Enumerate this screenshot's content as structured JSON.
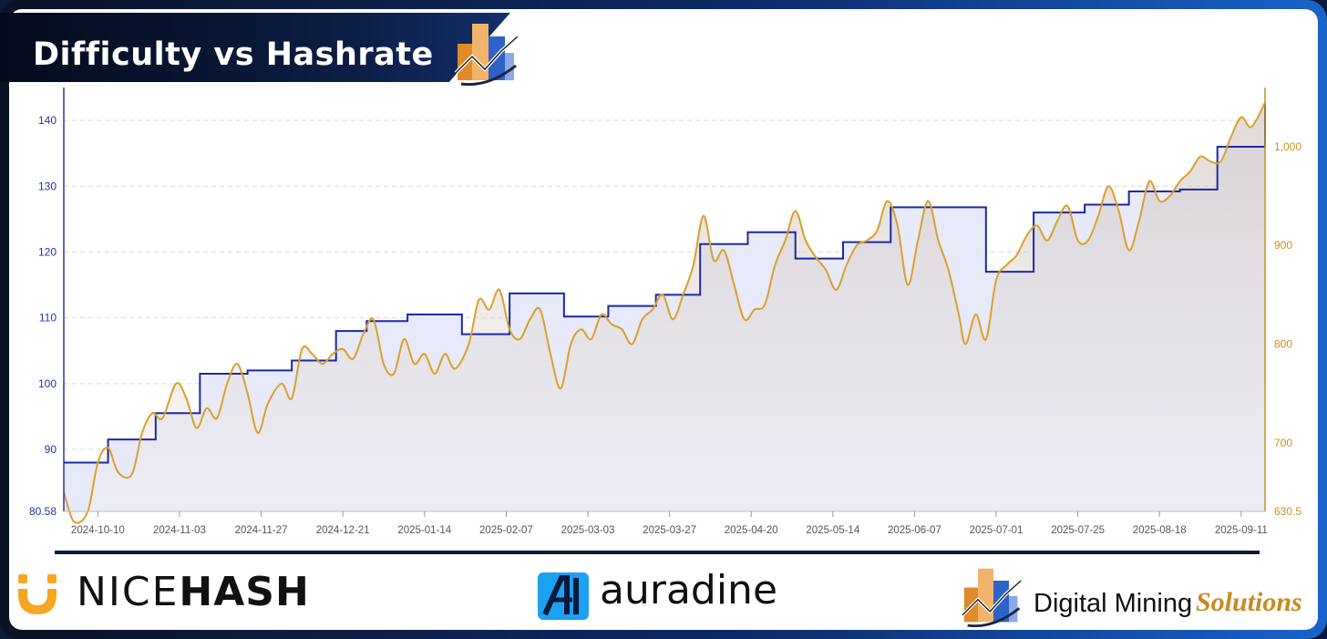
{
  "title": "Difficulty vs Hashrate",
  "colors": {
    "difficulty": "#1a2aa6",
    "hashrate": "#d9a02a",
    "left_axis": "#2233aa",
    "right_axis": "#c9921f",
    "grid": "#d9d9d9"
  },
  "footer": {
    "nicehash": {
      "prefix": "NICE",
      "suffix": "HASH",
      "icon": "nicehash-logo-icon"
    },
    "auradine": {
      "text": "auradine",
      "icon": "auradine-logo-icon"
    },
    "dms": {
      "text": "Digital Mining",
      "accent": "Solutions",
      "icon": "dms-logo-icon"
    }
  },
  "chart_data": {
    "type": "line",
    "title": "Difficulty vs Hashrate",
    "x_ticks": [
      "2024-10-10",
      "2024-11-03",
      "2024-11-27",
      "2024-12-21",
      "2025-01-14",
      "2025-02-07",
      "2025-03-03",
      "2025-03-27",
      "2025-04-20",
      "2025-05-14",
      "2025-06-07",
      "2025-07-01",
      "2025-07-25",
      "2025-08-18",
      "2025-09-11"
    ],
    "x_range": [
      "2024-09-30",
      "2025-09-18"
    ],
    "y_left": {
      "min": 80.58,
      "max": 145,
      "ticks": [
        80.58,
        90,
        100,
        110,
        120,
        130,
        140
      ]
    },
    "y_right": {
      "min": 630.5,
      "max": 1060,
      "ticks": [
        630.5,
        700,
        800,
        900,
        1000
      ],
      "tick_labels": [
        "630.5",
        "700",
        "800",
        "900",
        "1,000"
      ]
    },
    "series": [
      {
        "axis": "left",
        "step": true,
        "points": [
          [
            "2024-09-30",
            88
          ],
          [
            "2024-10-13",
            91.5
          ],
          [
            "2024-10-27",
            95.5
          ],
          [
            "2024-11-09",
            101.5
          ],
          [
            "2024-11-23",
            102
          ],
          [
            "2024-12-06",
            103.5
          ],
          [
            "2024-12-19",
            108
          ],
          [
            "2024-12-28",
            109.5
          ],
          [
            "2025-01-09",
            110.5
          ],
          [
            "2025-01-25",
            107.5
          ],
          [
            "2025-02-08",
            113.7
          ],
          [
            "2025-02-24",
            110.2
          ],
          [
            "2025-03-09",
            111.8
          ],
          [
            "2025-03-23",
            113.5
          ],
          [
            "2025-04-05",
            121.2
          ],
          [
            "2025-04-19",
            123
          ],
          [
            "2025-05-03",
            119
          ],
          [
            "2025-05-17",
            121.5
          ],
          [
            "2025-05-31",
            126.8
          ],
          [
            "2025-06-28",
            117
          ],
          [
            "2025-07-12",
            126
          ],
          [
            "2025-07-27",
            127.2
          ],
          [
            "2025-08-09",
            129.2
          ],
          [
            "2025-08-24",
            129.5
          ],
          [
            "2025-09-04",
            136
          ],
          [
            "2025-09-18",
            142.5
          ]
        ]
      },
      {
        "axis": "right",
        "step": false,
        "points": [
          [
            "2024-09-30",
            650
          ],
          [
            "2024-10-03",
            620
          ],
          [
            "2024-10-07",
            630
          ],
          [
            "2024-10-10",
            680
          ],
          [
            "2024-10-13",
            695
          ],
          [
            "2024-10-16",
            670
          ],
          [
            "2024-10-20",
            668
          ],
          [
            "2024-10-23",
            710
          ],
          [
            "2024-10-26",
            730
          ],
          [
            "2024-10-29",
            725
          ],
          [
            "2024-11-02",
            760
          ],
          [
            "2024-11-05",
            745
          ],
          [
            "2024-11-08",
            715
          ],
          [
            "2024-11-11",
            735
          ],
          [
            "2024-11-14",
            725
          ],
          [
            "2024-11-17",
            760
          ],
          [
            "2024-11-20",
            780
          ],
          [
            "2024-11-23",
            750
          ],
          [
            "2024-11-26",
            710
          ],
          [
            "2024-11-29",
            740
          ],
          [
            "2024-12-03",
            760
          ],
          [
            "2024-12-06",
            745
          ],
          [
            "2024-12-09",
            795
          ],
          [
            "2024-12-12",
            790
          ],
          [
            "2024-12-15",
            780
          ],
          [
            "2024-12-18",
            790
          ],
          [
            "2024-12-21",
            795
          ],
          [
            "2024-12-24",
            785
          ],
          [
            "2024-12-27",
            810
          ],
          [
            "2024-12-30",
            825
          ],
          [
            "2025-01-02",
            780
          ],
          [
            "2025-01-05",
            770
          ],
          [
            "2025-01-08",
            805
          ],
          [
            "2025-01-11",
            780
          ],
          [
            "2025-01-14",
            790
          ],
          [
            "2025-01-17",
            770
          ],
          [
            "2025-01-20",
            790
          ],
          [
            "2025-01-23",
            775
          ],
          [
            "2025-01-27",
            800
          ],
          [
            "2025-01-30",
            845
          ],
          [
            "2025-02-02",
            835
          ],
          [
            "2025-02-05",
            855
          ],
          [
            "2025-02-08",
            815
          ],
          [
            "2025-02-11",
            805
          ],
          [
            "2025-02-14",
            825
          ],
          [
            "2025-02-17",
            835
          ],
          [
            "2025-02-20",
            790
          ],
          [
            "2025-02-23",
            755
          ],
          [
            "2025-02-26",
            800
          ],
          [
            "2025-03-01",
            815
          ],
          [
            "2025-03-04",
            805
          ],
          [
            "2025-03-07",
            830
          ],
          [
            "2025-03-10",
            820
          ],
          [
            "2025-03-13",
            815
          ],
          [
            "2025-03-16",
            800
          ],
          [
            "2025-03-19",
            825
          ],
          [
            "2025-03-22",
            835
          ],
          [
            "2025-03-25",
            850
          ],
          [
            "2025-03-28",
            825
          ],
          [
            "2025-03-31",
            850
          ],
          [
            "2025-04-03",
            880
          ],
          [
            "2025-04-06",
            930
          ],
          [
            "2025-04-09",
            885
          ],
          [
            "2025-04-12",
            895
          ],
          [
            "2025-04-15",
            860
          ],
          [
            "2025-04-18",
            825
          ],
          [
            "2025-04-21",
            835
          ],
          [
            "2025-04-24",
            840
          ],
          [
            "2025-04-27",
            880
          ],
          [
            "2025-04-30",
            905
          ],
          [
            "2025-05-03",
            935
          ],
          [
            "2025-05-06",
            905
          ],
          [
            "2025-05-09",
            888
          ],
          [
            "2025-05-12",
            875
          ],
          [
            "2025-05-15",
            855
          ],
          [
            "2025-05-18",
            880
          ],
          [
            "2025-05-21",
            900
          ],
          [
            "2025-05-24",
            905
          ],
          [
            "2025-05-27",
            915
          ],
          [
            "2025-05-30",
            945
          ],
          [
            "2025-06-02",
            920
          ],
          [
            "2025-06-05",
            860
          ],
          [
            "2025-06-08",
            905
          ],
          [
            "2025-06-11",
            945
          ],
          [
            "2025-06-14",
            905
          ],
          [
            "2025-06-17",
            875
          ],
          [
            "2025-06-20",
            830
          ],
          [
            "2025-06-22",
            800
          ],
          [
            "2025-06-25",
            830
          ],
          [
            "2025-06-28",
            805
          ],
          [
            "2025-07-01",
            865
          ],
          [
            "2025-07-04",
            880
          ],
          [
            "2025-07-07",
            890
          ],
          [
            "2025-07-10",
            910
          ],
          [
            "2025-07-13",
            920
          ],
          [
            "2025-07-16",
            905
          ],
          [
            "2025-07-19",
            925
          ],
          [
            "2025-07-22",
            940
          ],
          [
            "2025-07-25",
            905
          ],
          [
            "2025-07-28",
            905
          ],
          [
            "2025-07-31",
            930
          ],
          [
            "2025-08-03",
            960
          ],
          [
            "2025-08-06",
            935
          ],
          [
            "2025-08-09",
            895
          ],
          [
            "2025-08-12",
            925
          ],
          [
            "2025-08-15",
            965
          ],
          [
            "2025-08-18",
            945
          ],
          [
            "2025-08-21",
            950
          ],
          [
            "2025-08-24",
            965
          ],
          [
            "2025-08-27",
            975
          ],
          [
            "2025-08-30",
            990
          ],
          [
            "2025-09-02",
            985
          ],
          [
            "2025-09-05",
            985
          ],
          [
            "2025-09-08",
            1010
          ],
          [
            "2025-09-11",
            1030
          ],
          [
            "2025-09-14",
            1020
          ],
          [
            "2025-09-18",
            1045
          ]
        ]
      }
    ]
  }
}
